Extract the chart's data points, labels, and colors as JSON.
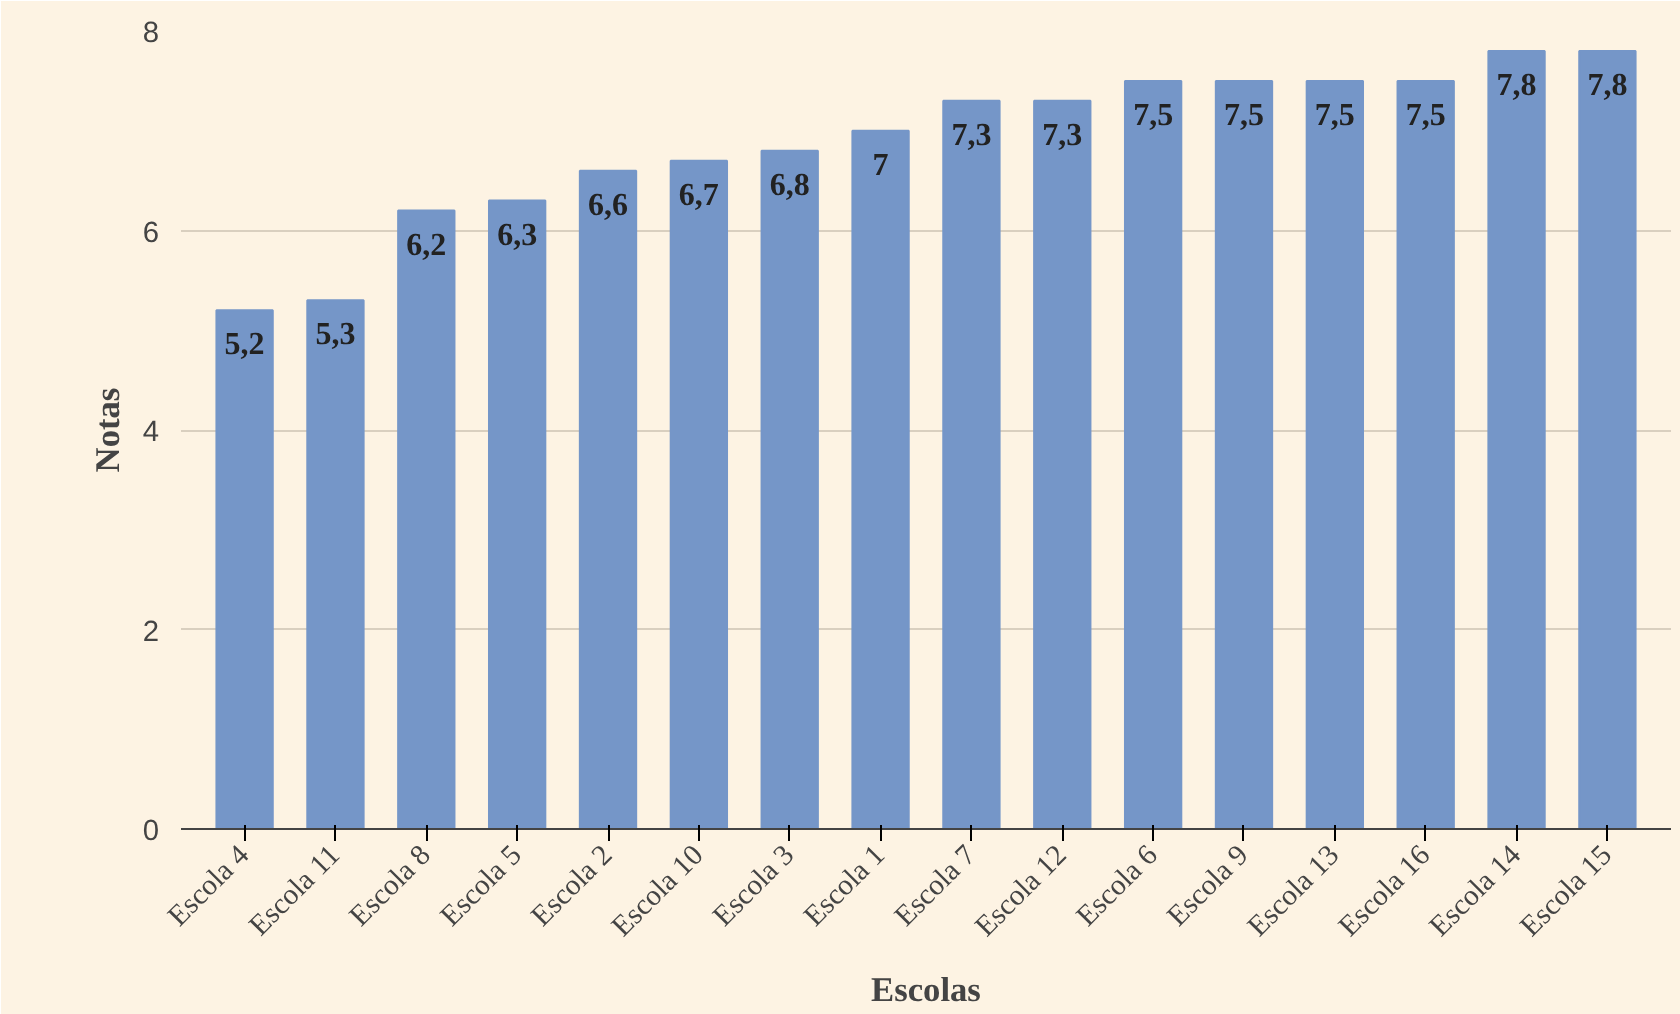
{
  "chart_data": {
    "type": "bar",
    "xlabel": "Escolas",
    "ylabel": "Notas",
    "categories": [
      "Escola 4",
      "Escola 11",
      "Escola 8",
      "Escola 5",
      "Escola 2",
      "Escola 10",
      "Escola 3",
      "Escola 1",
      "Escola 7",
      "Escola 12",
      "Escola 6",
      "Escola 9",
      "Escola 13",
      "Escola 16",
      "Escola 14",
      "Escola 15"
    ],
    "values": [
      5.2,
      5.3,
      6.2,
      6.3,
      6.6,
      6.7,
      6.8,
      7,
      7.3,
      7.3,
      7.5,
      7.5,
      7.5,
      7.5,
      7.8,
      7.8
    ],
    "value_labels": [
      "5,2",
      "5,3",
      "6,2",
      "6,3",
      "6,6",
      "6,7",
      "6,8",
      "7",
      "7,3",
      "7,3",
      "7,5",
      "7,5",
      "7,5",
      "7,5",
      "7,8",
      "7,8"
    ],
    "color": "#7596c8",
    "ylim": [
      0,
      8
    ],
    "yticks": [
      0,
      2,
      4,
      6,
      8
    ],
    "grid": "y"
  }
}
